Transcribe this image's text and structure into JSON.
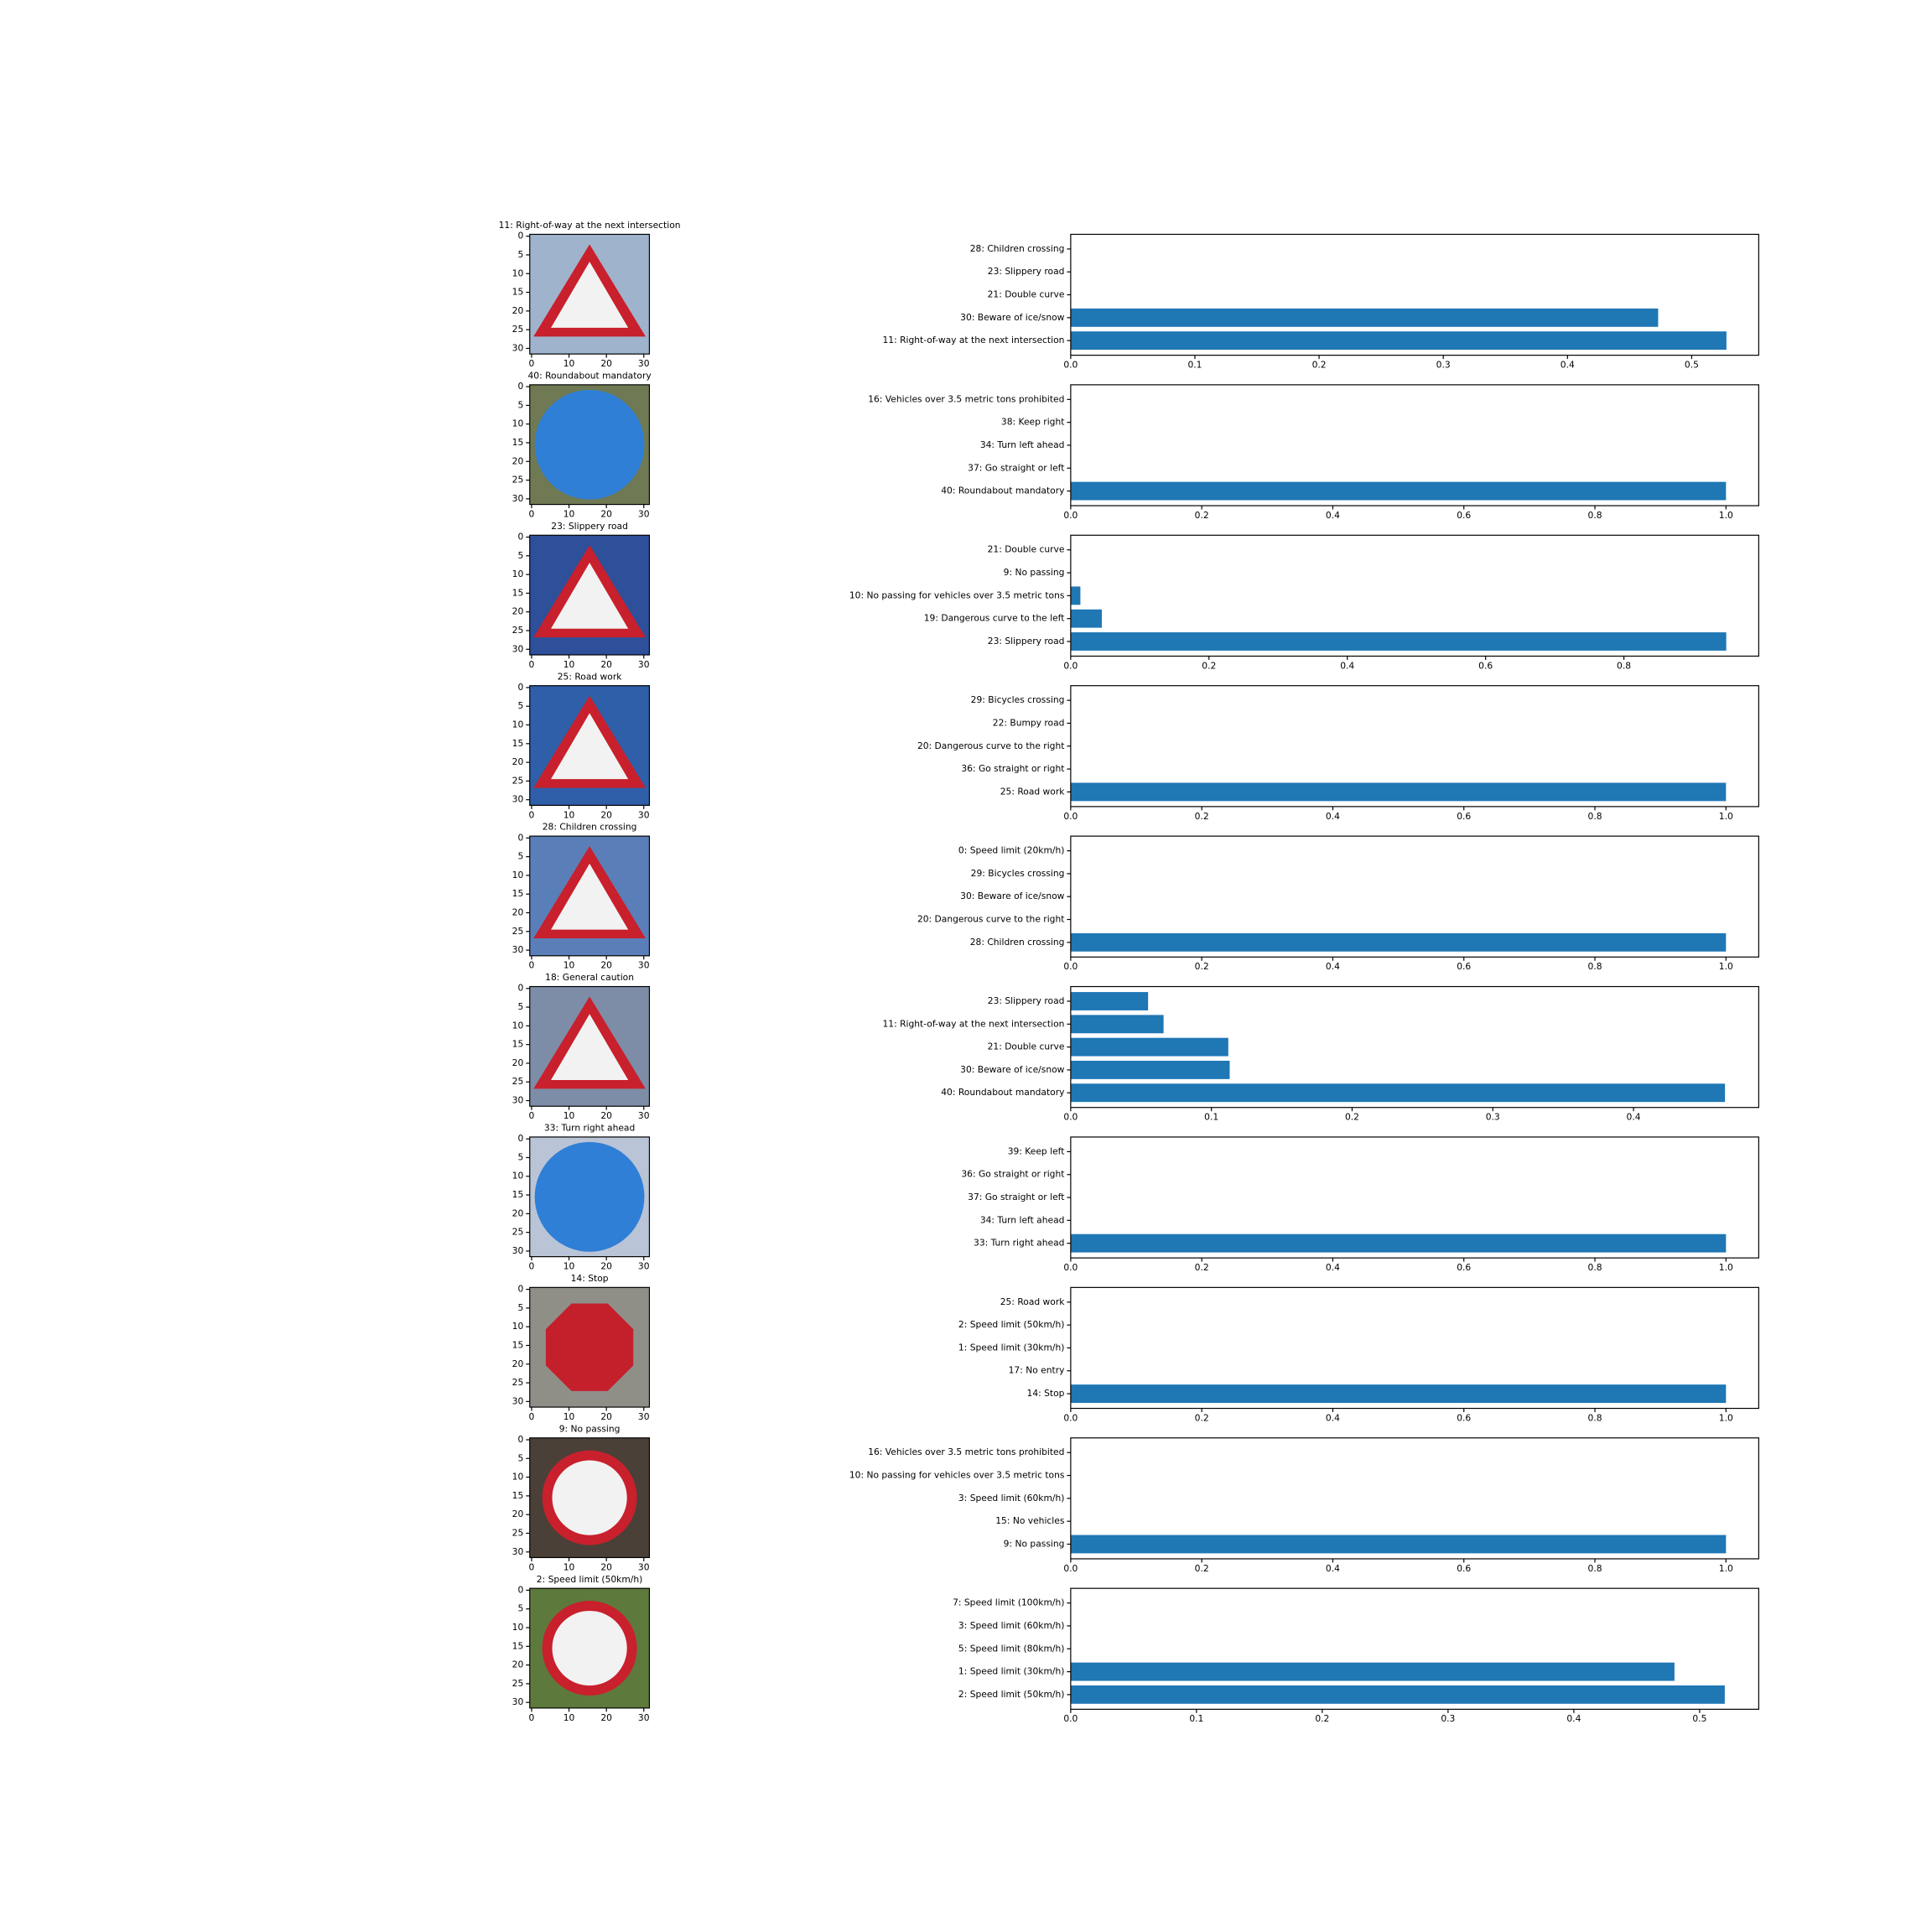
{
  "chart_data": [
    {
      "type": "image",
      "title": "11: Right-of-way at the next intersection",
      "xlim": [
        -0.5,
        31.5
      ],
      "ylim": [
        31.5,
        -0.5
      ],
      "xticks": [
        0,
        10,
        20,
        30
      ],
      "yticks": [
        0,
        5,
        10,
        15,
        20,
        25,
        30
      ]
    },
    {
      "type": "barh",
      "categories": [
        "11: Right-of-way at the next intersection",
        "30: Beware of ice/snow",
        "21: Double curve",
        "23: Slippery road",
        "28: Children crossing"
      ],
      "values": [
        0.528,
        0.473,
        0,
        0,
        0
      ],
      "color": "#1f77b4",
      "xlim": [
        0,
        0.554
      ],
      "xticks": [
        {
          "value": 0,
          "label": "0.0"
        },
        0.1,
        0.2,
        0.3,
        0.4,
        0.5
      ]
    },
    {
      "type": "image",
      "title": "40: Roundabout mandatory",
      "xlim": [
        -0.5,
        31.5
      ],
      "ylim": [
        31.5,
        -0.5
      ],
      "xticks": [
        0,
        10,
        20,
        30
      ],
      "yticks": [
        0,
        5,
        10,
        15,
        20,
        25,
        30
      ]
    },
    {
      "type": "barh",
      "categories": [
        "40: Roundabout mandatory",
        "37: Go straight or left",
        "34: Turn left ahead",
        "38: Keep right",
        "16: Vehicles over 3.5 metric tons prohibited"
      ],
      "values": [
        1,
        0,
        0,
        0,
        0
      ],
      "color": "#1f77b4",
      "xlim": [
        0,
        1.05
      ],
      "xticks": [
        {
          "value": 0,
          "label": "0.0"
        },
        0.2,
        0.4,
        0.6,
        0.8,
        {
          "value": 1,
          "label": "1.0"
        }
      ]
    },
    {
      "type": "image",
      "title": "23: Slippery road",
      "xlim": [
        -0.5,
        31.5
      ],
      "ylim": [
        31.5,
        -0.5
      ],
      "xticks": [
        0,
        10,
        20,
        30
      ],
      "yticks": [
        0,
        5,
        10,
        15,
        20,
        25,
        30
      ]
    },
    {
      "type": "barh",
      "categories": [
        "23: Slippery road",
        "19: Dangerous curve to the left",
        "10: No passing for vehicles over 3.5 metric tons",
        "9: No passing",
        "21: Double curve"
      ],
      "values": [
        0.948,
        0.045,
        0.014,
        0,
        0
      ],
      "color": "#1f77b4",
      "xlim": [
        0,
        0.995
      ],
      "xticks": [
        {
          "value": 0,
          "label": "0.0"
        },
        0.2,
        0.4,
        0.6,
        0.8
      ]
    },
    {
      "type": "image",
      "title": "25: Road work",
      "xlim": [
        -0.5,
        31.5
      ],
      "ylim": [
        31.5,
        -0.5
      ],
      "xticks": [
        0,
        10,
        20,
        30
      ],
      "yticks": [
        0,
        5,
        10,
        15,
        20,
        25,
        30
      ]
    },
    {
      "type": "barh",
      "categories": [
        "25: Road work",
        "36: Go straight or right",
        "20: Dangerous curve to the right",
        "22: Bumpy road",
        "29: Bicycles crossing"
      ],
      "values": [
        1,
        0,
        0,
        0,
        0
      ],
      "color": "#1f77b4",
      "xlim": [
        0,
        1.05
      ],
      "xticks": [
        {
          "value": 0,
          "label": "0.0"
        },
        0.2,
        0.4,
        0.6,
        0.8,
        {
          "value": 1,
          "label": "1.0"
        }
      ]
    },
    {
      "type": "image",
      "title": "28: Children crossing",
      "xlim": [
        -0.5,
        31.5
      ],
      "ylim": [
        31.5,
        -0.5
      ],
      "xticks": [
        0,
        10,
        20,
        30
      ],
      "yticks": [
        0,
        5,
        10,
        15,
        20,
        25,
        30
      ]
    },
    {
      "type": "barh",
      "categories": [
        "28: Children crossing",
        "20: Dangerous curve to the right",
        "30: Beware of ice/snow",
        "29: Bicycles crossing",
        "0: Speed limit (20km/h)"
      ],
      "values": [
        1,
        0,
        0,
        0,
        0
      ],
      "color": "#1f77b4",
      "xlim": [
        0,
        1.05
      ],
      "xticks": [
        {
          "value": 0,
          "label": "0.0"
        },
        0.2,
        0.4,
        0.6,
        0.8,
        {
          "value": 1,
          "label": "1.0"
        }
      ]
    },
    {
      "type": "image",
      "title": "18: General caution",
      "xlim": [
        -0.5,
        31.5
      ],
      "ylim": [
        31.5,
        -0.5
      ],
      "xticks": [
        0,
        10,
        20,
        30
      ],
      "yticks": [
        0,
        5,
        10,
        15,
        20,
        25,
        30
      ]
    },
    {
      "type": "barh",
      "categories": [
        "40: Roundabout mandatory",
        "30: Beware of ice/snow",
        "21: Double curve",
        "11: Right-of-way at the next intersection",
        "23: Slippery road"
      ],
      "values": [
        0.465,
        0.113,
        0.112,
        0.066,
        0.055
      ],
      "color": "#1f77b4",
      "xlim": [
        0,
        0.489
      ],
      "xticks": [
        {
          "value": 0,
          "label": "0.0"
        },
        0.1,
        0.2,
        0.3,
        0.4
      ]
    },
    {
      "type": "image",
      "title": "33: Turn right ahead",
      "xlim": [
        -0.5,
        31.5
      ],
      "ylim": [
        31.5,
        -0.5
      ],
      "xticks": [
        0,
        10,
        20,
        30
      ],
      "yticks": [
        0,
        5,
        10,
        15,
        20,
        25,
        30
      ]
    },
    {
      "type": "barh",
      "categories": [
        "33: Turn right ahead",
        "34: Turn left ahead",
        "37: Go straight or left",
        "36: Go straight or right",
        "39: Keep left"
      ],
      "values": [
        1,
        0,
        0,
        0,
        0
      ],
      "color": "#1f77b4",
      "xlim": [
        0,
        1.05
      ],
      "xticks": [
        {
          "value": 0,
          "label": "0.0"
        },
        0.2,
        0.4,
        0.6,
        0.8,
        {
          "value": 1,
          "label": "1.0"
        }
      ]
    },
    {
      "type": "image",
      "title": "14: Stop",
      "xlim": [
        -0.5,
        31.5
      ],
      "ylim": [
        31.5,
        -0.5
      ],
      "xticks": [
        0,
        10,
        20,
        30
      ],
      "yticks": [
        0,
        5,
        10,
        15,
        20,
        25,
        30
      ]
    },
    {
      "type": "barh",
      "categories": [
        "14: Stop",
        "17: No entry",
        "1: Speed limit (30km/h)",
        "2: Speed limit (50km/h)",
        "25: Road work"
      ],
      "values": [
        1,
        0,
        0,
        0,
        0
      ],
      "color": "#1f77b4",
      "xlim": [
        0,
        1.05
      ],
      "xticks": [
        {
          "value": 0,
          "label": "0.0"
        },
        0.2,
        0.4,
        0.6,
        0.8,
        {
          "value": 1,
          "label": "1.0"
        }
      ]
    },
    {
      "type": "image",
      "title": "9: No passing",
      "xlim": [
        -0.5,
        31.5
      ],
      "ylim": [
        31.5,
        -0.5
      ],
      "xticks": [
        0,
        10,
        20,
        30
      ],
      "yticks": [
        0,
        5,
        10,
        15,
        20,
        25,
        30
      ]
    },
    {
      "type": "barh",
      "categories": [
        "9: No passing",
        "15: No vehicles",
        "3: Speed limit (60km/h)",
        "10: No passing for vehicles over 3.5 metric tons",
        "16: Vehicles over 3.5 metric tons prohibited"
      ],
      "values": [
        1,
        0,
        0,
        0,
        0
      ],
      "color": "#1f77b4",
      "xlim": [
        0,
        1.05
      ],
      "xticks": [
        {
          "value": 0,
          "label": "0.0"
        },
        0.2,
        0.4,
        0.6,
        0.8,
        {
          "value": 1,
          "label": "1.0"
        }
      ]
    },
    {
      "type": "image",
      "title": "2: Speed limit (50km/h)",
      "xlim": [
        -0.5,
        31.5
      ],
      "ylim": [
        31.5,
        -0.5
      ],
      "xticks": [
        0,
        10,
        20,
        30
      ],
      "yticks": [
        0,
        5,
        10,
        15,
        20,
        25,
        30
      ]
    },
    {
      "type": "barh",
      "categories": [
        "2: Speed limit (50km/h)",
        "1: Speed limit (30km/h)",
        "5: Speed limit (80km/h)",
        "3: Speed limit (60km/h)",
        "7: Speed limit (100km/h)"
      ],
      "values": [
        0.52,
        0.48,
        0,
        0,
        0
      ],
      "color": "#1f77b4",
      "xlim": [
        0,
        0.547
      ],
      "xticks": [
        {
          "value": 0,
          "label": "0.0"
        },
        0.1,
        0.2,
        0.3,
        0.4,
        0.5
      ]
    }
  ]
}
